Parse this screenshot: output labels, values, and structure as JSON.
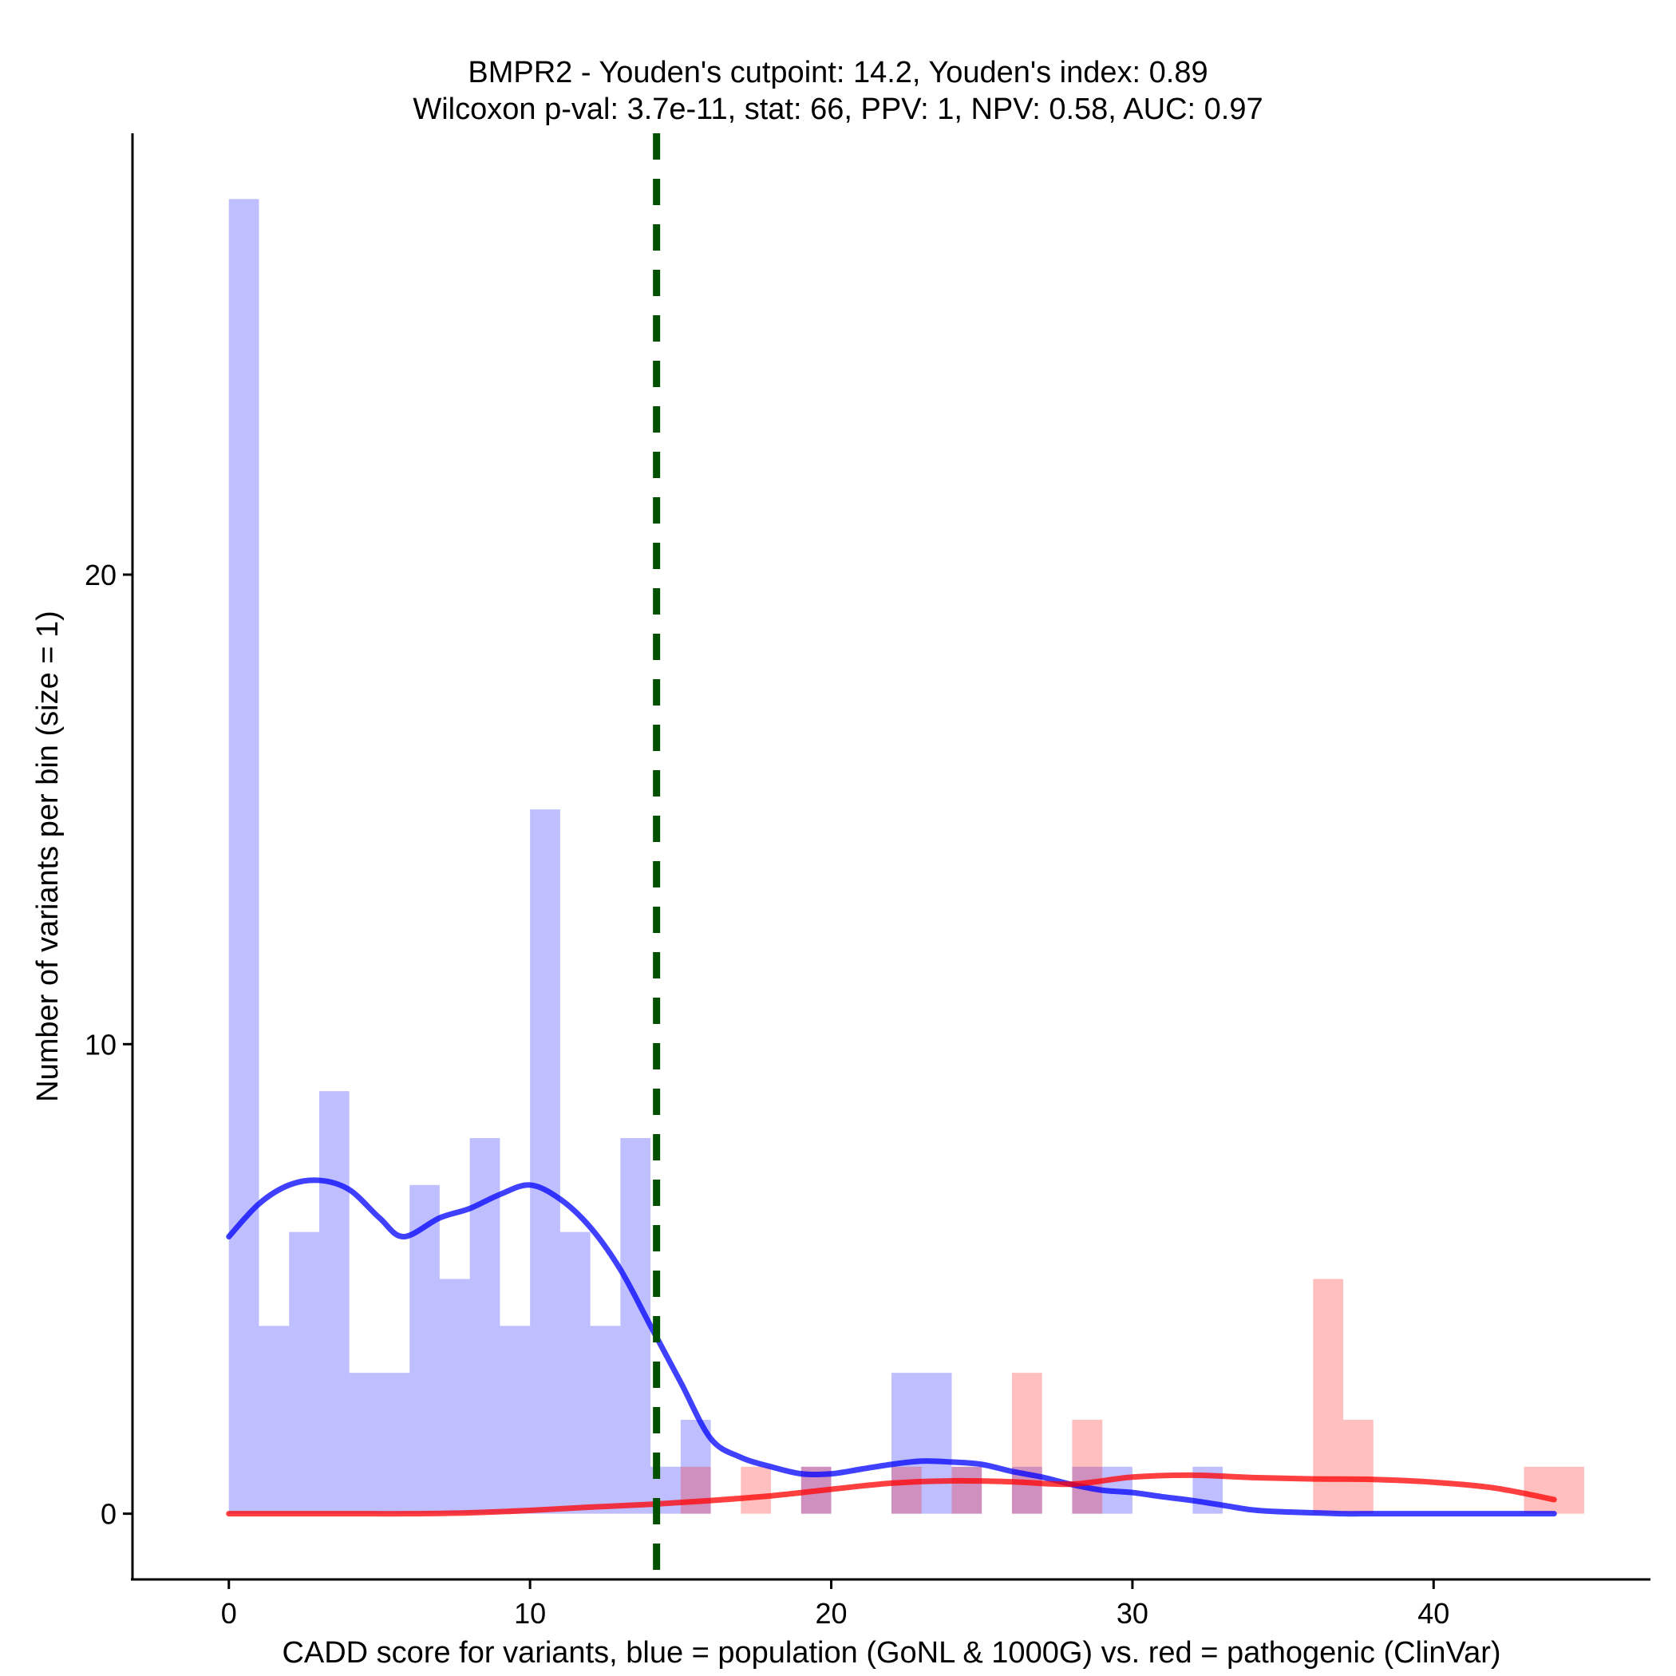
{
  "chart_data": {
    "type": "bar",
    "title": "BMPR2 - Youden's cutpoint: 14.2, Youden's index: 0.89",
    "subtitle": "Wilcoxon p-val: 3.7e-11, stat: 66, PPV: 1, NPV: 0.58, AUC: 0.97",
    "xlabel": "CADD score for variants, blue = population (GoNL & 1000G) vs. red = pathogenic (ClinVar)",
    "ylabel": "Number of variants per bin (size = 1)",
    "xlim": [
      -3.2,
      47.2
    ],
    "ylim": [
      -1.4,
      29.4
    ],
    "x_ticks": [
      0,
      10,
      20,
      30,
      40
    ],
    "x_tick_labels": [
      "0",
      "10",
      "20",
      "30",
      "40"
    ],
    "y_ticks": [
      0,
      10,
      20
    ],
    "y_tick_labels": [
      "0",
      "10",
      "20"
    ],
    "bin_width": 1,
    "cutpoint": 14.2,
    "series": [
      {
        "name": "population (GoNL & 1000G)",
        "color": "#0000ff",
        "opacity": 0.25,
        "bins": [
          {
            "x0": 0,
            "count": 28
          },
          {
            "x0": 1,
            "count": 4
          },
          {
            "x0": 2,
            "count": 6
          },
          {
            "x0": 3,
            "count": 9
          },
          {
            "x0": 4,
            "count": 3
          },
          {
            "x0": 5,
            "count": 3
          },
          {
            "x0": 6,
            "count": 7
          },
          {
            "x0": 7,
            "count": 5
          },
          {
            "x0": 8,
            "count": 8
          },
          {
            "x0": 9,
            "count": 4
          },
          {
            "x0": 10,
            "count": 15
          },
          {
            "x0": 11,
            "count": 6
          },
          {
            "x0": 12,
            "count": 4
          },
          {
            "x0": 13,
            "count": 8
          },
          {
            "x0": 14,
            "count": 1
          },
          {
            "x0": 15,
            "count": 2
          },
          {
            "x0": 19,
            "count": 1
          },
          {
            "x0": 22,
            "count": 3
          },
          {
            "x0": 23,
            "count": 3
          },
          {
            "x0": 24,
            "count": 1
          },
          {
            "x0": 26,
            "count": 1
          },
          {
            "x0": 28,
            "count": 1
          },
          {
            "x0": 29,
            "count": 1
          },
          {
            "x0": 32,
            "count": 1
          }
        ],
        "density_curve": {
          "x": [
            0,
            1,
            2,
            3,
            4,
            5,
            5.8,
            7,
            8,
            9,
            10,
            11,
            12,
            13,
            14,
            15,
            16,
            17,
            18,
            19,
            20,
            21,
            22,
            23,
            24,
            25,
            26,
            27,
            28,
            29,
            30,
            31,
            32,
            33,
            34,
            35,
            36,
            37,
            38,
            39,
            40,
            41,
            42,
            43,
            44
          ],
          "y": [
            5.9,
            6.6,
            7.0,
            7.1,
            6.9,
            6.3,
            5.9,
            6.3,
            6.5,
            6.8,
            7.0,
            6.7,
            6.1,
            5.2,
            4.0,
            2.8,
            1.6,
            1.2,
            1.0,
            0.85,
            0.85,
            0.95,
            1.05,
            1.12,
            1.1,
            1.05,
            0.9,
            0.78,
            0.62,
            0.5,
            0.45,
            0.36,
            0.28,
            0.18,
            0.08,
            0.04,
            0.02,
            0.0,
            0.0,
            0.0,
            0.0,
            0.0,
            0.0,
            0.0,
            0.0
          ]
        }
      },
      {
        "name": "pathogenic (ClinVar)",
        "color": "#ff0000",
        "opacity": 0.25,
        "bins": [
          {
            "x0": 15,
            "count": 1
          },
          {
            "x0": 17,
            "count": 1
          },
          {
            "x0": 19,
            "count": 1
          },
          {
            "x0": 22,
            "count": 1
          },
          {
            "x0": 24,
            "count": 1
          },
          {
            "x0": 26,
            "count": 3
          },
          {
            "x0": 28,
            "count": 2
          },
          {
            "x0": 36,
            "count": 5
          },
          {
            "x0": 37,
            "count": 2
          },
          {
            "x0": 43,
            "count": 1
          },
          {
            "x0": 44,
            "count": 1
          }
        ],
        "density_curve": {
          "x": [
            0,
            2,
            4,
            6,
            8,
            10,
            12,
            14,
            16,
            18,
            20,
            22,
            24,
            26,
            28,
            30,
            32,
            34,
            36,
            38,
            40,
            42,
            44
          ],
          "y": [
            0.0,
            0.0,
            0.0,
            0.0,
            0.02,
            0.07,
            0.14,
            0.2,
            0.28,
            0.38,
            0.52,
            0.65,
            0.7,
            0.68,
            0.63,
            0.78,
            0.82,
            0.77,
            0.74,
            0.73,
            0.67,
            0.55,
            0.3
          ]
        }
      }
    ],
    "cutpoint_color": "#005000",
    "legend": "none",
    "grid": false
  }
}
